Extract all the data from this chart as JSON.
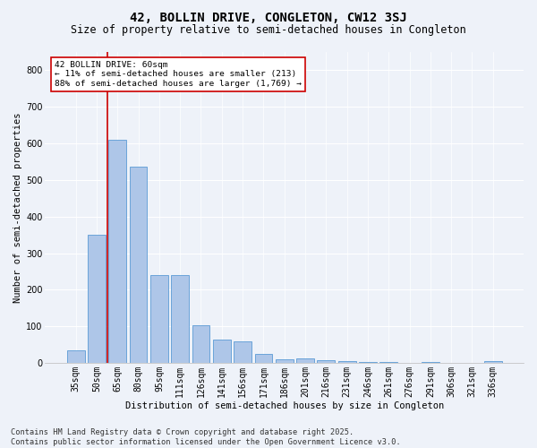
{
  "title": "42, BOLLIN DRIVE, CONGLETON, CW12 3SJ",
  "subtitle": "Size of property relative to semi-detached houses in Congleton",
  "xlabel": "Distribution of semi-detached houses by size in Congleton",
  "ylabel": "Number of semi-detached properties",
  "categories": [
    "35sqm",
    "50sqm",
    "65sqm",
    "80sqm",
    "95sqm",
    "111sqm",
    "126sqm",
    "141sqm",
    "156sqm",
    "171sqm",
    "186sqm",
    "201sqm",
    "216sqm",
    "231sqm",
    "246sqm",
    "261sqm",
    "276sqm",
    "291sqm",
    "306sqm",
    "321sqm",
    "336sqm"
  ],
  "values": [
    35,
    350,
    610,
    535,
    240,
    240,
    103,
    65,
    60,
    25,
    10,
    12,
    8,
    5,
    4,
    2,
    0,
    4,
    1,
    0,
    5
  ],
  "bar_color": "#aec6e8",
  "bar_edge_color": "#5b9bd5",
  "vline_color": "#cc0000",
  "annotation_title": "42 BOLLIN DRIVE: 60sqm",
  "annotation_line1": "← 11% of semi-detached houses are smaller (213)",
  "annotation_line2": "88% of semi-detached houses are larger (1,769) →",
  "annotation_box_color": "#ffffff",
  "annotation_box_edge": "#cc0000",
  "footer1": "Contains HM Land Registry data © Crown copyright and database right 2025.",
  "footer2": "Contains public sector information licensed under the Open Government Licence v3.0.",
  "ylim": [
    0,
    850
  ],
  "yticks": [
    0,
    100,
    200,
    300,
    400,
    500,
    600,
    700,
    800
  ],
  "bg_color": "#eef2f9",
  "plot_bg_color": "#eef2f9",
  "grid_color": "#ffffff",
  "title_fontsize": 10,
  "subtitle_fontsize": 8.5,
  "axis_label_fontsize": 7.5,
  "tick_fontsize": 7,
  "annot_fontsize": 6.8,
  "footer_fontsize": 6.2
}
